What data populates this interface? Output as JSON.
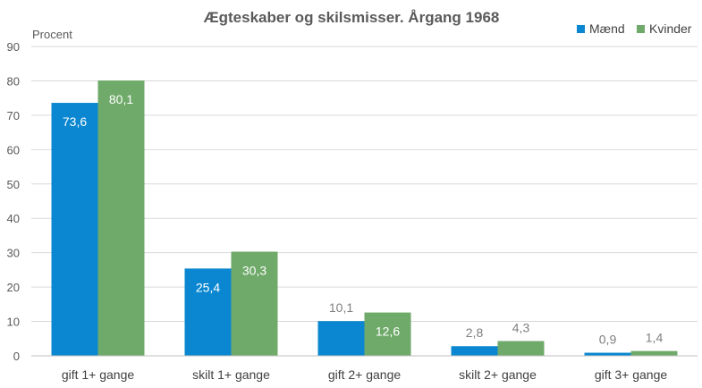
{
  "chart_data": {
    "type": "bar",
    "title": "Ægteskaber og skilsmisser. Årgang 1968",
    "xlabel": "",
    "ylabel": "Procent",
    "ylim": [
      0,
      90
    ],
    "yticks": [
      0,
      10,
      20,
      30,
      40,
      50,
      60,
      70,
      80,
      90
    ],
    "grid": true,
    "legend_position": "top-right",
    "categories": [
      "gift 1+ gange",
      "skilt 1+ gange",
      "gift 2+ gange",
      "skilt 2+  gange",
      "gift 3+ gange"
    ],
    "series": [
      {
        "name": "Mænd",
        "color": "#0a87d0",
        "values": [
          73.6,
          25.4,
          10.1,
          2.8,
          0.9
        ],
        "labels": [
          "73,6",
          "25,4",
          "10,1",
          "2,8",
          "0,9"
        ]
      },
      {
        "name": "Kvinder",
        "color": "#6faa6a",
        "values": [
          80.1,
          30.3,
          12.6,
          4.3,
          1.4
        ],
        "labels": [
          "80,1",
          "30,3",
          "12,6",
          "4,3",
          "1,4"
        ]
      }
    ]
  }
}
